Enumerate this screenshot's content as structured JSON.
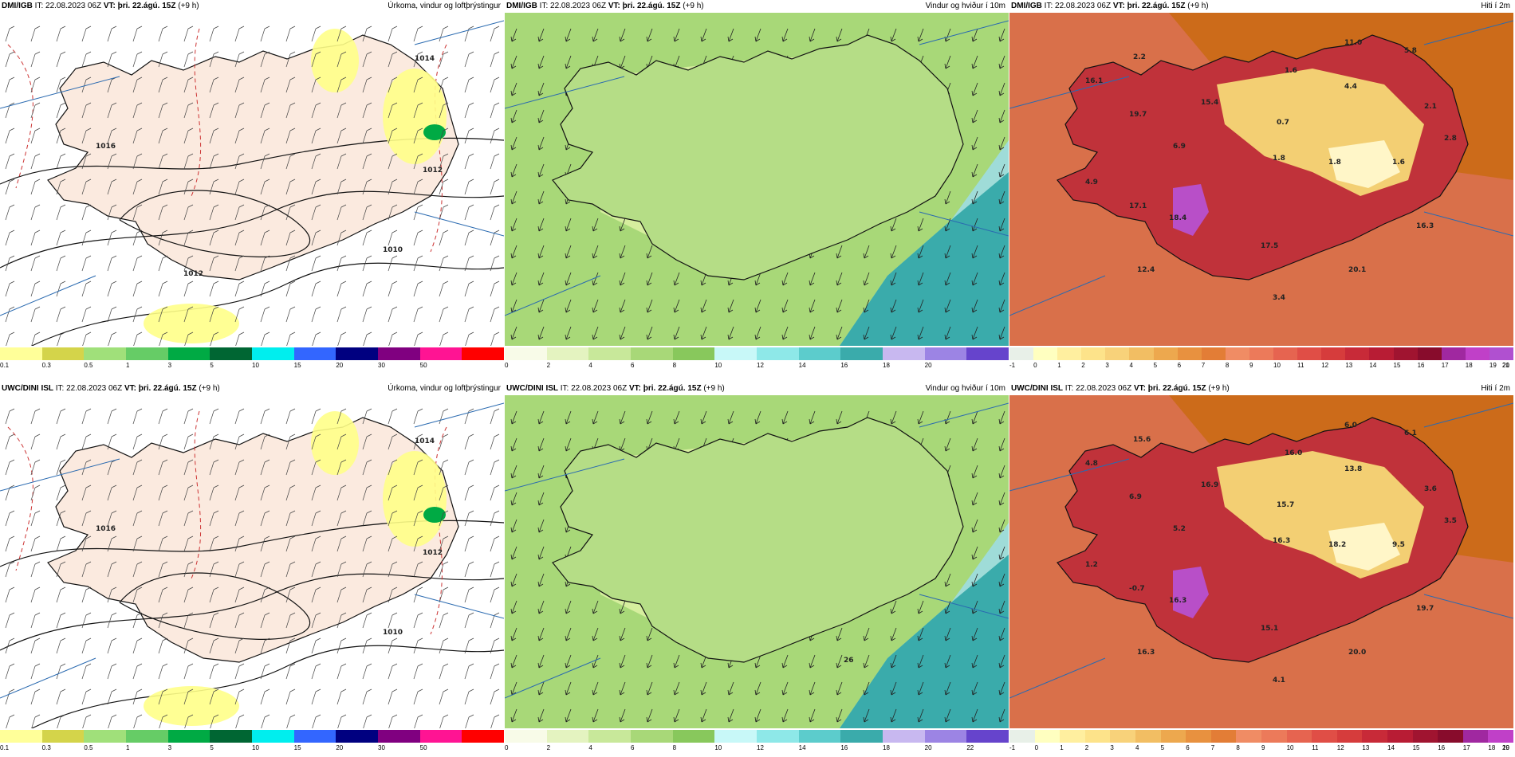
{
  "panels": [
    {
      "id": "precip-dmi",
      "header_model": "DMI/IGB",
      "header_it": "IT: 22.08.2023 06Z",
      "header_vt_label": "VT:",
      "header_vt_value": "þri. 22.ágú. 15Z",
      "header_lead": "(+9 h)",
      "title": "Úrkoma, vindur og loftþrýstingur",
      "map_type": "precip",
      "map_labels": [
        {
          "text": "1016"
        },
        {
          "text": "1014"
        },
        {
          "text": "1012"
        },
        {
          "text": "1010"
        },
        {
          "text": "1012"
        }
      ],
      "legend": {
        "colors": [
          "#ffff99",
          "#d4d44a",
          "#a0e07a",
          "#66cc66",
          "#00aa44",
          "#006633",
          "#00eeee",
          "#3366ff",
          "#000080",
          "#800080",
          "#ff1493",
          "#ff0000"
        ],
        "labels": [
          "0.1",
          "0.3",
          "0.5",
          "1",
          "3",
          "5",
          "10",
          "15",
          "20",
          "30",
          "50"
        ]
      }
    },
    {
      "id": "wind-dmi",
      "header_model": "DMI/IGB",
      "header_it": "IT: 22.08.2023 06Z",
      "header_vt_label": "VT:",
      "header_vt_value": "þri. 22.ágú. 15Z",
      "header_lead": "(+9 h)",
      "title": "Vindur og hviður í 10m",
      "map_type": "wind",
      "map_labels": [],
      "legend": {
        "colors": [
          "#f8fbe8",
          "#e4f3c0",
          "#c8e89a",
          "#a8d878",
          "#88c85c",
          "#c8f8f8",
          "#8ee8e8",
          "#5ccccc",
          "#3aabab",
          "#c8b8f0",
          "#9c84e4",
          "#6644cc"
        ],
        "labels": [
          "0",
          "2",
          "4",
          "6",
          "8",
          "10",
          "12",
          "14",
          "16",
          "18",
          "20"
        ]
      }
    },
    {
      "id": "temp-dmi",
      "header_model": "DMI/IGB",
      "header_it": "IT: 22.08.2023 06Z",
      "header_vt_label": "VT:",
      "header_vt_value": "þri. 22.ágú. 15Z",
      "header_lead": "(+9 h)",
      "title": "Hiti í 2m",
      "map_type": "temp",
      "map_labels": [
        {
          "text": "11.0"
        },
        {
          "text": "5.8"
        },
        {
          "text": "2.2"
        },
        {
          "text": "1.6"
        },
        {
          "text": "16.1"
        },
        {
          "text": "4.4"
        },
        {
          "text": "15.4"
        },
        {
          "text": "2.1"
        },
        {
          "text": "19.7"
        },
        {
          "text": "0.7"
        },
        {
          "text": "2.8"
        },
        {
          "text": "6.9"
        },
        {
          "text": "1.8"
        },
        {
          "text": "1.8"
        },
        {
          "text": "1.6"
        },
        {
          "text": "4.9"
        },
        {
          "text": "17.1"
        },
        {
          "text": "18.4"
        },
        {
          "text": "16.3"
        },
        {
          "text": "17.5"
        },
        {
          "text": "12.4"
        },
        {
          "text": "20.1"
        },
        {
          "text": "3.4"
        }
      ],
      "legend": {
        "colors": [
          "#e8f0e8",
          "#ffffc0",
          "#ffef9f",
          "#fde38a",
          "#f8d27a",
          "#f2be63",
          "#eda84e",
          "#e8913f",
          "#e37d36",
          "#f08c64",
          "#ec7a5a",
          "#e66450",
          "#e04e46",
          "#d63c3c",
          "#c82a38",
          "#b81c34",
          "#a01430",
          "#880c2c",
          "#a028a0",
          "#c040c8",
          "#b050d0"
        ],
        "labels": [
          "-1",
          "0",
          "1",
          "2",
          "3",
          "4",
          "5",
          "6",
          "7",
          "8",
          "9",
          "10",
          "11",
          "12",
          "13",
          "14",
          "15",
          "16",
          "17",
          "18",
          "19",
          "20",
          "21"
        ]
      }
    },
    {
      "id": "precip-uwc",
      "header_model": "UWC/DINI ISL",
      "header_it": "IT: 22.08.2023 06Z",
      "header_vt_label": "VT:",
      "header_vt_value": "þri. 22.ágú. 15Z",
      "header_lead": "(+9 h)",
      "title": "Úrkoma, vindur og loftþrýstingur",
      "map_type": "precip",
      "map_labels": [
        {
          "text": "1016"
        },
        {
          "text": "1014"
        },
        {
          "text": "1012"
        },
        {
          "text": "1010"
        }
      ],
      "legend": {
        "colors": [
          "#ffff99",
          "#d4d44a",
          "#a0e07a",
          "#66cc66",
          "#00aa44",
          "#006633",
          "#00eeee",
          "#3366ff",
          "#000080",
          "#800080",
          "#ff1493",
          "#ff0000"
        ],
        "labels": [
          "0.1",
          "0.3",
          "0.5",
          "1",
          "3",
          "5",
          "10",
          "15",
          "20",
          "30",
          "50"
        ]
      }
    },
    {
      "id": "wind-uwc",
      "header_model": "UWC/DINI ISL",
      "header_it": "IT: 22.08.2023 06Z",
      "header_vt_label": "VT:",
      "header_vt_value": "þri. 22.ágú. 15Z",
      "header_lead": "(+9 h)",
      "title": "Vindur og hviður í 10m",
      "map_type": "wind",
      "map_labels": [
        {
          "text": "26"
        }
      ],
      "legend": {
        "colors": [
          "#f8fbe8",
          "#e4f3c0",
          "#c8e89a",
          "#a8d878",
          "#88c85c",
          "#c8f8f8",
          "#8ee8e8",
          "#5ccccc",
          "#3aabab",
          "#c8b8f0",
          "#9c84e4",
          "#6644cc"
        ],
        "labels": [
          "0",
          "2",
          "4",
          "6",
          "8",
          "10",
          "12",
          "14",
          "16",
          "18",
          "20",
          "22"
        ]
      }
    },
    {
      "id": "temp-uwc",
      "header_model": "UWC/DINI ISL",
      "header_it": "IT: 22.08.2023 06Z",
      "header_vt_label": "VT:",
      "header_vt_value": "þri. 22.ágú. 15Z",
      "header_lead": "(+9 h)",
      "title": "Hiti í 2m",
      "map_type": "temp",
      "map_labels": [
        {
          "text": "6.0"
        },
        {
          "text": "6.1"
        },
        {
          "text": "15.6"
        },
        {
          "text": "16.0"
        },
        {
          "text": "4.8"
        },
        {
          "text": "13.8"
        },
        {
          "text": "16.9"
        },
        {
          "text": "3.6"
        },
        {
          "text": "6.9"
        },
        {
          "text": "15.7"
        },
        {
          "text": "3.5"
        },
        {
          "text": "5.2"
        },
        {
          "text": "16.3"
        },
        {
          "text": "18.2"
        },
        {
          "text": "9.5"
        },
        {
          "text": "1.2"
        },
        {
          "text": "-0.7"
        },
        {
          "text": "16.3"
        },
        {
          "text": "19.7"
        },
        {
          "text": "15.1"
        },
        {
          "text": "16.3"
        },
        {
          "text": "20.0"
        },
        {
          "text": "4.1"
        }
      ],
      "legend": {
        "colors": [
          "#e8f0e8",
          "#ffffc0",
          "#ffef9f",
          "#fde38a",
          "#f8d27a",
          "#f2be63",
          "#eda84e",
          "#e8913f",
          "#e37d36",
          "#f08c64",
          "#ec7a5a",
          "#e66450",
          "#e04e46",
          "#d63c3c",
          "#c82a38",
          "#b81c34",
          "#a01430",
          "#880c2c",
          "#a028a0",
          "#c040c8"
        ],
        "labels": [
          "-1",
          "0",
          "1",
          "2",
          "3",
          "4",
          "5",
          "6",
          "7",
          "8",
          "9",
          "10",
          "11",
          "12",
          "13",
          "14",
          "15",
          "16",
          "17",
          "18",
          "19",
          "20"
        ]
      }
    }
  ]
}
